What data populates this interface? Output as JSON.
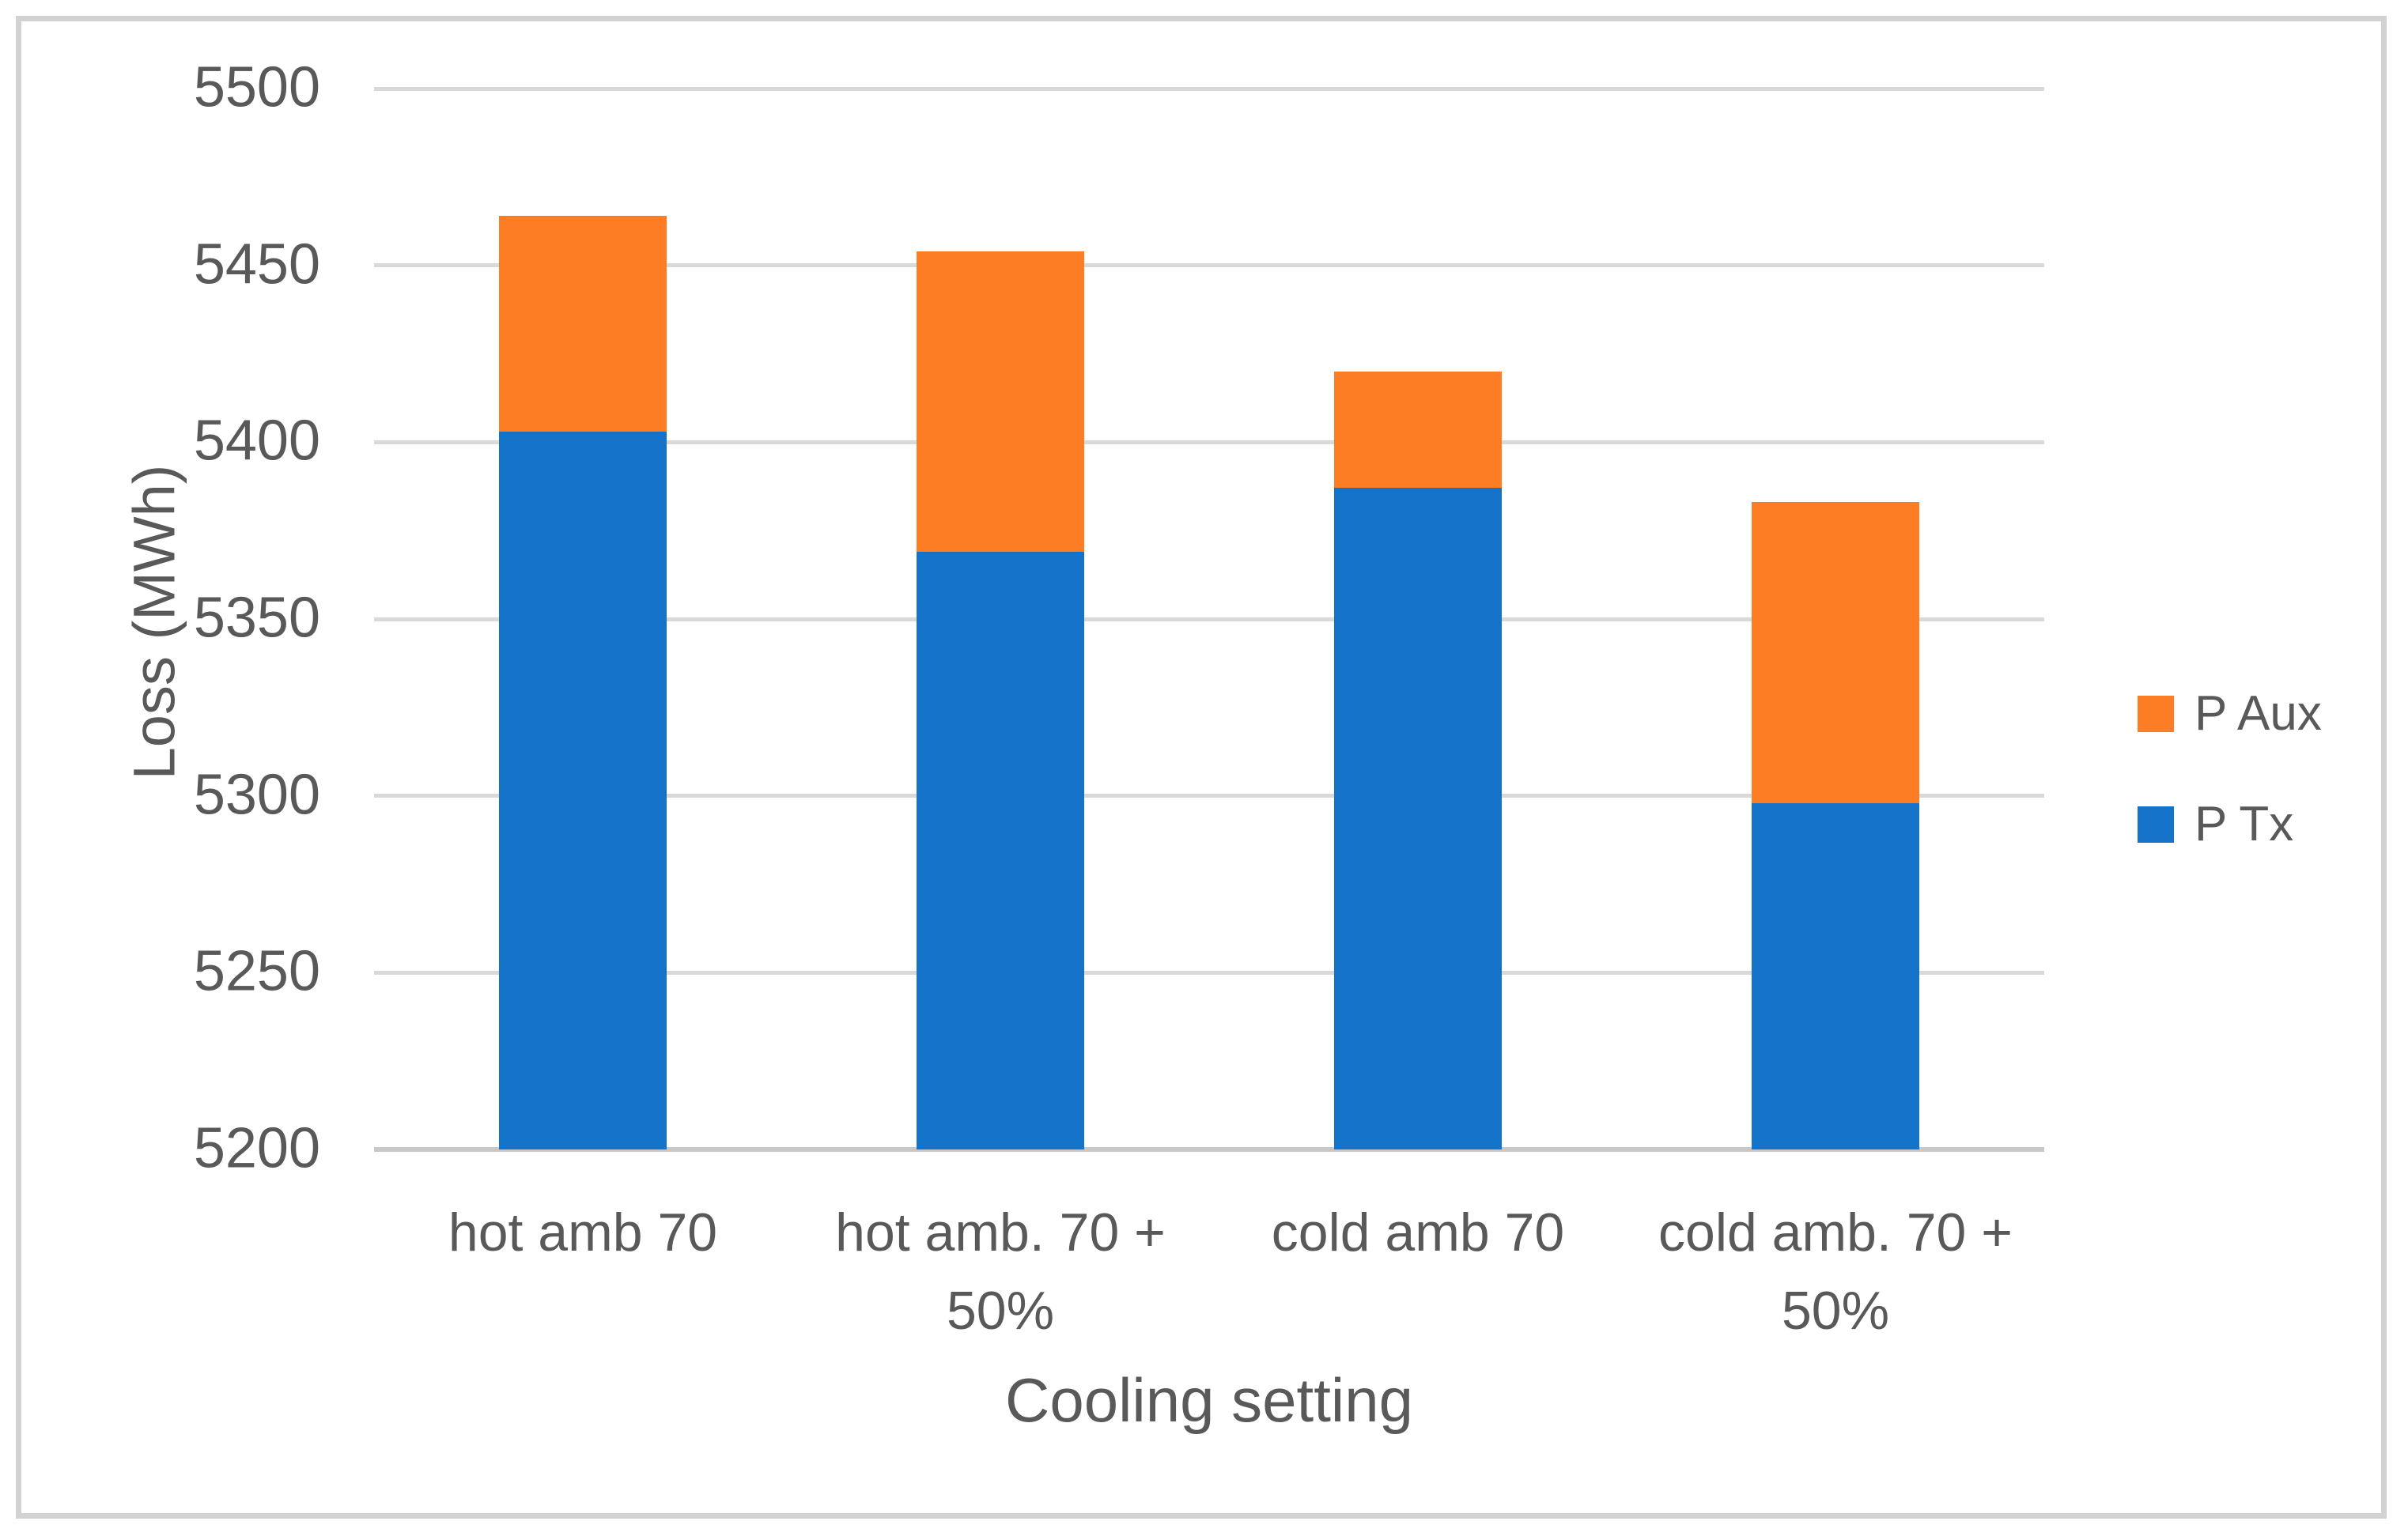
{
  "figure": {
    "background_color": "#FFFFFF",
    "border_color": "#D2D2D2",
    "text_color": "#595959"
  },
  "chart_data": {
    "type": "bar",
    "stacked": true,
    "title": "",
    "xlabel": "Cooling setting",
    "ylabel": "Loss (MWh)",
    "categories": [
      "hot amb 70",
      "hot amb. 70 + 50%",
      "cold amb 70",
      "cold amb. 70 + 50%"
    ],
    "category_label_lines": [
      [
        "hot amb 70"
      ],
      [
        "hot amb. 70 +",
        "50%"
      ],
      [
        "cold amb 70"
      ],
      [
        "cold amb. 70 +",
        "50%"
      ]
    ],
    "series": [
      {
        "name": "P Tx",
        "color": "#1572C9",
        "values": [
          5403,
          5369,
          5387,
          5298
        ]
      },
      {
        "name": "P Aux",
        "color": "#FC7D24",
        "values": [
          61,
          85,
          33,
          85
        ]
      }
    ],
    "stack_totals": [
      5464,
      5454,
      5420,
      5383
    ],
    "ylim": [
      5200,
      5500
    ],
    "yticks": [
      5500,
      5450,
      5400,
      5350,
      5300,
      5250,
      5200
    ],
    "grid": true,
    "legend_position": "right",
    "legend_order": [
      "P Aux",
      "P Tx"
    ],
    "colors": {
      "gridline": "#D9D9D9",
      "axis_line": "#C8C8C8"
    }
  }
}
